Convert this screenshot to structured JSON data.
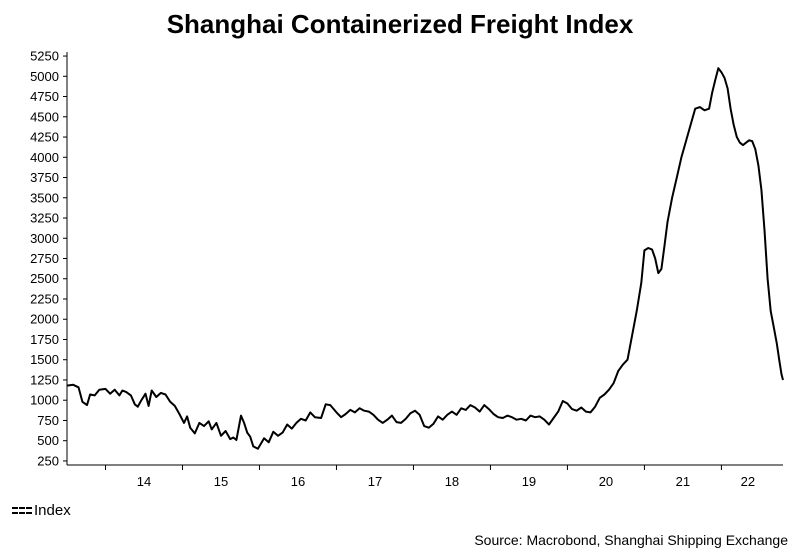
{
  "chart_data": {
    "type": "line",
    "title": "Shanghai Containerized Freight Index",
    "xlabel": "",
    "ylabel": "",
    "x_tick_labels": [
      "14",
      "15",
      "16",
      "17",
      "18",
      "19",
      "20",
      "21",
      "22"
    ],
    "xlim": [
      2013.5,
      2022.8
    ],
    "ylim": [
      200,
      5300
    ],
    "y_ticks": [
      250,
      500,
      750,
      1000,
      1250,
      1500,
      1750,
      2000,
      2250,
      2500,
      2750,
      3000,
      3250,
      3500,
      3750,
      4000,
      4250,
      4500,
      4750,
      5000,
      5250
    ],
    "grid": false,
    "legend_position": "bottom-left",
    "series": [
      {
        "name": "Index",
        "color": "#000000",
        "points": [
          [
            2013.5,
            1180
          ],
          [
            2013.58,
            1190
          ],
          [
            2013.65,
            1160
          ],
          [
            2013.7,
            980
          ],
          [
            2013.76,
            940
          ],
          [
            2013.8,
            1070
          ],
          [
            2013.86,
            1060
          ],
          [
            2013.92,
            1130
          ],
          [
            2014.0,
            1140
          ],
          [
            2014.06,
            1080
          ],
          [
            2014.12,
            1130
          ],
          [
            2014.18,
            1060
          ],
          [
            2014.22,
            1120
          ],
          [
            2014.27,
            1100
          ],
          [
            2014.33,
            1060
          ],
          [
            2014.38,
            950
          ],
          [
            2014.42,
            920
          ],
          [
            2014.46,
            990
          ],
          [
            2014.52,
            1080
          ],
          [
            2014.56,
            930
          ],
          [
            2014.6,
            1120
          ],
          [
            2014.66,
            1040
          ],
          [
            2014.72,
            1090
          ],
          [
            2014.78,
            1070
          ],
          [
            2014.84,
            980
          ],
          [
            2014.9,
            930
          ],
          [
            2014.96,
            830
          ],
          [
            2015.02,
            720
          ],
          [
            2015.06,
            800
          ],
          [
            2015.1,
            660
          ],
          [
            2015.16,
            590
          ],
          [
            2015.22,
            720
          ],
          [
            2015.28,
            680
          ],
          [
            2015.34,
            740
          ],
          [
            2015.38,
            640
          ],
          [
            2015.44,
            720
          ],
          [
            2015.5,
            560
          ],
          [
            2015.56,
            620
          ],
          [
            2015.62,
            520
          ],
          [
            2015.66,
            540
          ],
          [
            2015.7,
            510
          ],
          [
            2015.76,
            810
          ],
          [
            2015.8,
            720
          ],
          [
            2015.84,
            600
          ],
          [
            2015.88,
            550
          ],
          [
            2015.92,
            430
          ],
          [
            2015.98,
            400
          ],
          [
            2016.06,
            530
          ],
          [
            2016.12,
            480
          ],
          [
            2016.18,
            610
          ],
          [
            2016.24,
            560
          ],
          [
            2016.3,
            600
          ],
          [
            2016.36,
            700
          ],
          [
            2016.42,
            650
          ],
          [
            2016.48,
            720
          ],
          [
            2016.54,
            770
          ],
          [
            2016.6,
            750
          ],
          [
            2016.66,
            850
          ],
          [
            2016.72,
            790
          ],
          [
            2016.8,
            780
          ],
          [
            2016.86,
            950
          ],
          [
            2016.92,
            940
          ],
          [
            2017.0,
            850
          ],
          [
            2017.06,
            790
          ],
          [
            2017.12,
            830
          ],
          [
            2017.18,
            880
          ],
          [
            2017.24,
            850
          ],
          [
            2017.3,
            900
          ],
          [
            2017.36,
            870
          ],
          [
            2017.42,
            860
          ],
          [
            2017.48,
            820
          ],
          [
            2017.54,
            760
          ],
          [
            2017.6,
            720
          ],
          [
            2017.66,
            760
          ],
          [
            2017.72,
            810
          ],
          [
            2017.78,
            730
          ],
          [
            2017.84,
            720
          ],
          [
            2017.9,
            770
          ],
          [
            2017.96,
            840
          ],
          [
            2018.02,
            870
          ],
          [
            2018.08,
            820
          ],
          [
            2018.14,
            680
          ],
          [
            2018.2,
            660
          ],
          [
            2018.26,
            710
          ],
          [
            2018.32,
            800
          ],
          [
            2018.38,
            760
          ],
          [
            2018.44,
            820
          ],
          [
            2018.5,
            860
          ],
          [
            2018.56,
            820
          ],
          [
            2018.62,
            900
          ],
          [
            2018.68,
            880
          ],
          [
            2018.74,
            940
          ],
          [
            2018.8,
            910
          ],
          [
            2018.86,
            860
          ],
          [
            2018.92,
            940
          ],
          [
            2018.98,
            890
          ],
          [
            2019.04,
            830
          ],
          [
            2019.1,
            790
          ],
          [
            2019.16,
            780
          ],
          [
            2019.22,
            810
          ],
          [
            2019.28,
            790
          ],
          [
            2019.34,
            760
          ],
          [
            2019.4,
            770
          ],
          [
            2019.46,
            750
          ],
          [
            2019.52,
            810
          ],
          [
            2019.58,
            790
          ],
          [
            2019.64,
            800
          ],
          [
            2019.7,
            760
          ],
          [
            2019.76,
            700
          ],
          [
            2019.82,
            780
          ],
          [
            2019.88,
            860
          ],
          [
            2019.94,
            990
          ],
          [
            2020.0,
            960
          ],
          [
            2020.06,
            890
          ],
          [
            2020.12,
            870
          ],
          [
            2020.18,
            910
          ],
          [
            2020.24,
            860
          ],
          [
            2020.3,
            850
          ],
          [
            2020.36,
            920
          ],
          [
            2020.42,
            1030
          ],
          [
            2020.48,
            1070
          ],
          [
            2020.54,
            1130
          ],
          [
            2020.6,
            1210
          ],
          [
            2020.66,
            1360
          ],
          [
            2020.72,
            1440
          ],
          [
            2020.78,
            1500
          ],
          [
            2020.84,
            1800
          ],
          [
            2020.9,
            2100
          ],
          [
            2020.96,
            2450
          ],
          [
            2021.0,
            2850
          ],
          [
            2021.05,
            2880
          ],
          [
            2021.1,
            2860
          ],
          [
            2021.14,
            2750
          ],
          [
            2021.18,
            2570
          ],
          [
            2021.22,
            2620
          ],
          [
            2021.26,
            2900
          ],
          [
            2021.3,
            3200
          ],
          [
            2021.36,
            3500
          ],
          [
            2021.42,
            3750
          ],
          [
            2021.48,
            4000
          ],
          [
            2021.54,
            4200
          ],
          [
            2021.6,
            4400
          ],
          [
            2021.66,
            4600
          ],
          [
            2021.72,
            4620
          ],
          [
            2021.78,
            4580
          ],
          [
            2021.84,
            4600
          ],
          [
            2021.88,
            4800
          ],
          [
            2021.92,
            4950
          ],
          [
            2021.96,
            5100
          ],
          [
            2022.0,
            5050
          ],
          [
            2022.04,
            4980
          ],
          [
            2022.08,
            4850
          ],
          [
            2022.12,
            4600
          ],
          [
            2022.16,
            4400
          ],
          [
            2022.2,
            4250
          ],
          [
            2022.24,
            4180
          ],
          [
            2022.28,
            4150
          ],
          [
            2022.32,
            4180
          ],
          [
            2022.36,
            4210
          ],
          [
            2022.4,
            4200
          ],
          [
            2022.44,
            4100
          ],
          [
            2022.48,
            3900
          ],
          [
            2022.52,
            3600
          ],
          [
            2022.56,
            3100
          ],
          [
            2022.6,
            2500
          ],
          [
            2022.64,
            2100
          ],
          [
            2022.68,
            1900
          ],
          [
            2022.72,
            1700
          ],
          [
            2022.75,
            1500
          ],
          [
            2022.78,
            1320
          ],
          [
            2022.8,
            1250
          ]
        ]
      }
    ]
  },
  "legend": {
    "label": "Index"
  },
  "footer": {
    "source": "Source: Macrobond, Shanghai Shipping Exchange"
  }
}
